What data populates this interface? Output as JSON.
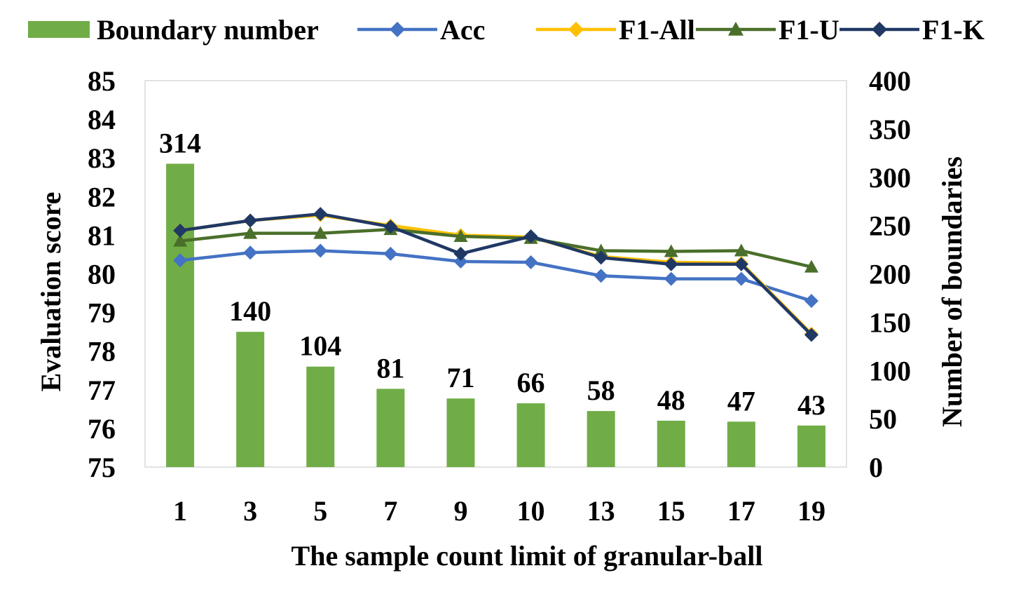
{
  "chart_data": {
    "type": "bar",
    "xlabel": "The sample count limit of granular-ball",
    "ylabel": "Evaluation score",
    "y2label": "Number of boundaries",
    "categories": [
      "1",
      "3",
      "5",
      "7",
      "9",
      "10",
      "13",
      "15",
      "17",
      "19"
    ],
    "ylim": [
      75,
      85
    ],
    "y2lim": [
      0,
      400
    ],
    "yticks": [
      "75",
      "76",
      "77",
      "78",
      "79",
      "80",
      "81",
      "82",
      "83",
      "84",
      "85"
    ],
    "y2ticks": [
      "0",
      "50",
      "100",
      "150",
      "200",
      "250",
      "300",
      "350",
      "400"
    ],
    "legend_position": "top",
    "grid": false,
    "bar_series": {
      "name": "Boundary number",
      "axis": "right",
      "color": "#70AD47",
      "values": [
        314,
        140,
        104,
        81,
        71,
        66,
        58,
        48,
        47,
        43
      ],
      "labels": [
        "314",
        "140",
        "104",
        "81",
        "71",
        "66",
        "58",
        "48",
        "47",
        "43"
      ]
    },
    "line_series": [
      {
        "name": "Acc",
        "axis": "left",
        "color": "#4472C4",
        "marker": "diamond",
        "values": [
          80.35,
          80.55,
          80.6,
          80.52,
          80.32,
          80.3,
          79.95,
          79.87,
          79.87,
          79.3
        ]
      },
      {
        "name": "F1-All",
        "axis": "left",
        "color": "#FFC000",
        "marker": "diamond",
        "values": [
          81.12,
          81.38,
          81.52,
          81.25,
          81.0,
          80.95,
          80.45,
          80.3,
          80.28,
          78.45
        ]
      },
      {
        "name": "F1-U",
        "axis": "left",
        "color": "#4A6F2A",
        "marker": "triangle",
        "values": [
          80.85,
          81.05,
          81.05,
          81.15,
          80.97,
          80.92,
          80.6,
          80.58,
          80.6,
          80.18
        ]
      },
      {
        "name": "F1-K",
        "axis": "left",
        "color": "#203864",
        "marker": "diamond",
        "values": [
          81.12,
          81.38,
          81.55,
          81.22,
          80.52,
          80.97,
          80.42,
          80.25,
          80.25,
          78.42
        ]
      }
    ]
  }
}
